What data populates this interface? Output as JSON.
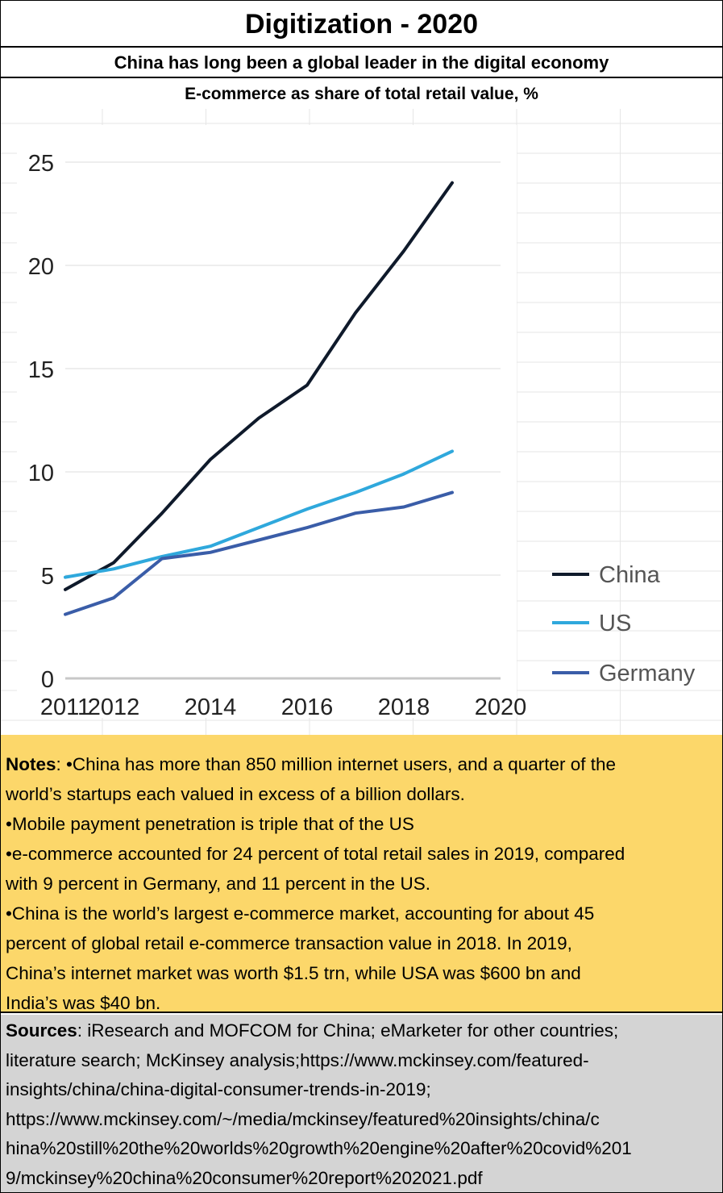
{
  "header": {
    "title": "Digitization - 2020",
    "subtitle": "China has long been a global leader in the digital economy"
  },
  "chart_data": {
    "type": "line",
    "title": "E-commerce as share of total retail value, %",
    "xlabel": "",
    "ylabel": "",
    "xlim": [
      2011,
      2020
    ],
    "ylim": [
      0,
      25
    ],
    "x_ticks": [
      "2011",
      "2012",
      "2014",
      "2016",
      "2018",
      "2020"
    ],
    "y_ticks": [
      "0",
      "5",
      "10",
      "15",
      "20",
      "25"
    ],
    "grid": true,
    "legend_position": "bottom-right",
    "series": [
      {
        "name": "China",
        "color": "#0f1a2b",
        "x": [
          2011,
          2012,
          2013,
          2014,
          2015,
          2016,
          2017,
          2018,
          2019
        ],
        "y": [
          4.3,
          5.6,
          8.0,
          10.6,
          12.6,
          14.2,
          17.7,
          20.7,
          24.0
        ]
      },
      {
        "name": "US",
        "color": "#2fa8dc",
        "x": [
          2011,
          2012,
          2013,
          2014,
          2015,
          2016,
          2017,
          2018,
          2019
        ],
        "y": [
          4.9,
          5.3,
          5.9,
          6.4,
          7.3,
          8.2,
          9.0,
          9.9,
          11.0
        ]
      },
      {
        "name": "Germany",
        "color": "#3a5da8",
        "x": [
          2011,
          2012,
          2013,
          2014,
          2015,
          2016,
          2017,
          2018,
          2019
        ],
        "y": [
          3.1,
          3.9,
          5.8,
          6.1,
          6.7,
          7.3,
          8.0,
          8.3,
          9.0
        ]
      }
    ]
  },
  "notes": {
    "label": "Notes",
    "lines": [
      ": •China has more than 850 million internet users, and a quarter of the",
      "world’s startups each valued in excess of a billion dollars.",
      "•Mobile payment penetration is triple that of the US",
      "•e-commerce accounted for 24 percent of total retail sales in 2019, compared",
      "with 9 percent in Germany, and 11 percent in the US.",
      "•China is the world’s largest e-commerce market, accounting for about 45",
      "percent of global retail e-commerce transaction value in 2018. In 2019,",
      "China’s internet market was worth $1.5 trn, while USA  was $600 bn and",
      "India’s was $40 bn."
    ]
  },
  "sources": {
    "label": "Sources",
    "lines": [
      ": iResearch and MOFCOM for China; eMarketer for other countries;",
      "literature search; McKinsey analysis;https://www.mckinsey.com/featured-",
      "insights/china/china-digital-consumer-trends-in-2019;",
      "https://www.mckinsey.com/~/media/mckinsey/featured%20insights/china/c",
      "hina%20still%20the%20worlds%20growth%20engine%20after%20covid%201",
      "9/mckinsey%20china%20consumer%20report%202021.pdf"
    ]
  }
}
